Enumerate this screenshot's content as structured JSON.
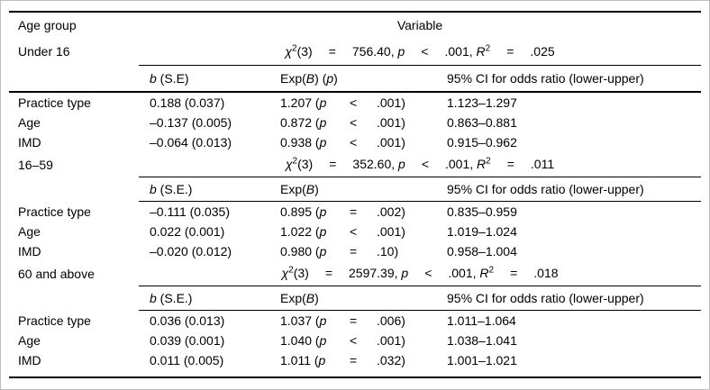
{
  "frame": {
    "border_color": "#bdbdbd",
    "background": "#ffffff",
    "text_color": "#000000",
    "rule_color": "#000000"
  },
  "labels": {
    "chi": "χ",
    "two": "2",
    "df": "(3)",
    "eq": "=",
    "p": "p",
    "R": "R",
    "b": "b",
    "B": "B"
  },
  "table": {
    "corner": "Age group",
    "variable": "Variable"
  },
  "sections": [
    {
      "group": "Under 16",
      "stat": {
        "chisq": "756.40,",
        "op": "<",
        "pval": ".001,",
        "r2": ".025"
      },
      "header": {
        "b_rest": " (S.E)",
        "exp_pre": "Exp(",
        "exp_close": ")",
        "exp_p_pre": " (",
        "exp_p": "p",
        "exp_p_close": ")",
        "ci": "95% CI for odds ratio (lower-upper)"
      },
      "rows": [
        {
          "label": "Practice type",
          "b": "0.188 (0.037)",
          "exp": "1.207 (",
          "op": "<",
          "pval": ".001)",
          "ci": "1.123–1.297"
        },
        {
          "label": "Age",
          "b": "–0.137 (0.005)",
          "exp": "0.872 (",
          "op": "<",
          "pval": ".001)",
          "ci": "0.863–0.881"
        },
        {
          "label": "IMD",
          "b": "–0.064 (0.013)",
          "exp": "0.938 (",
          "op": "<",
          "pval": ".001)",
          "ci": "0.915–0.962"
        }
      ]
    },
    {
      "group": "16–59",
      "stat": {
        "chisq": "352.60,",
        "op": "<",
        "pval": ".001,",
        "r2": ".011"
      },
      "header": {
        "b_rest": " (S.E.)",
        "exp_pre": "Exp(",
        "exp_close": ")",
        "ci": "95% CI for odds ratio (lower-upper)"
      },
      "rows": [
        {
          "label": "Practice type",
          "b": "–0.111 (0.035)",
          "exp": "0.895 (",
          "op": "=",
          "pval": ".002)",
          "ci": "0.835–0.959"
        },
        {
          "label": "Age",
          "b": "0.022 (0.001)",
          "exp": "1.022 (",
          "op": "<",
          "pval": ".001)",
          "ci": "1.019–1.024"
        },
        {
          "label": "IMD",
          "b": "–0.020 (0.012)",
          "exp": "0.980 (",
          "op": "=",
          "pval": ".10)",
          "ci": "0.958–1.004"
        }
      ]
    },
    {
      "group": "60 and above",
      "stat": {
        "chisq": "2597.39,",
        "op": "<",
        "pval": ".001,",
        "r2": ".018"
      },
      "header": {
        "b_rest": " (S.E.)",
        "exp_pre": "Exp(",
        "exp_close": ")",
        "ci": "95% CI for odds ratio (lower-upper)"
      },
      "rows": [
        {
          "label": "Practice type",
          "b": "0.036 (0.013)",
          "exp": "1.037 (",
          "op": "=",
          "pval": ".006)",
          "ci": "1.011–1.064"
        },
        {
          "label": "Age",
          "b": "0.039 (0.001)",
          "exp": "1.040 (",
          "op": "<",
          "pval": ".001)",
          "ci": "1.038–1.041"
        },
        {
          "label": "IMD",
          "b": "0.011 (0.005)",
          "exp": "1.011 (",
          "op": "=",
          "pval": ".032)",
          "ci": "1.001–1.021"
        }
      ]
    }
  ]
}
